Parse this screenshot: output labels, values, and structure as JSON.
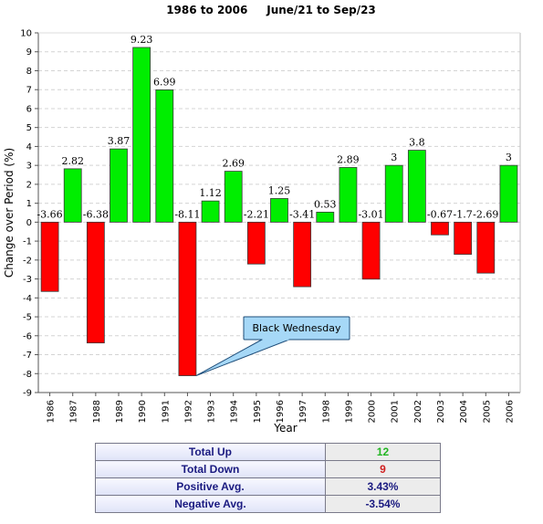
{
  "chart_data": {
    "type": "bar",
    "title": "1986 to 2006     June/21 to Sep/23",
    "xlabel": "Year",
    "ylabel": "Change over Period (%)",
    "ylim": [
      -9,
      10
    ],
    "yticks": [
      10,
      9,
      8,
      7,
      6,
      5,
      4,
      3,
      2,
      1,
      0,
      -1,
      -2,
      -3,
      -4,
      -5,
      -6,
      -7,
      -8,
      -9
    ],
    "grid": true,
    "categories": [
      "1986",
      "1987",
      "1988",
      "1989",
      "1990",
      "1991",
      "1992",
      "1993",
      "1994",
      "1995",
      "1996",
      "1997",
      "1998",
      "1999",
      "2000",
      "2001",
      "2002",
      "2003",
      "2004",
      "2005",
      "2006"
    ],
    "values": [
      -3.66,
      2.82,
      -6.38,
      3.87,
      9.23,
      6.99,
      -8.11,
      1.12,
      2.69,
      -2.21,
      1.25,
      -3.41,
      0.53,
      2.89,
      -3.01,
      3,
      3.8,
      -0.67,
      -1.7,
      -2.69,
      3
    ],
    "value_labels": [
      "-3.66",
      "2.82",
      "-6.38",
      "3.87",
      "9.23",
      "6.99",
      "-8.11",
      "1.12",
      "2.69",
      "-2.21",
      "1.25",
      "-3.41",
      "0.53",
      "2.89",
      "-3.01",
      "3",
      "3.8",
      "-0.67",
      "-1.7",
      "-2.69",
      "3"
    ],
    "colors": {
      "positive": "#00ee00",
      "negative": "#ff0000",
      "callout": "#a6d8f7"
    },
    "annotations": [
      {
        "text": "Black Wednesday",
        "category": "1992",
        "value": -8.11
      }
    ]
  },
  "summary": {
    "rows": [
      {
        "label": "Total Up",
        "value": "12",
        "color": "#22b522"
      },
      {
        "label": "Total Down",
        "value": "9",
        "color": "#d02020"
      },
      {
        "label": "Positive Avg.",
        "value": "3.43%",
        "color": "#1a1a80"
      },
      {
        "label": "Negative Avg.",
        "value": "-3.54%",
        "color": "#1a1a80"
      }
    ]
  }
}
